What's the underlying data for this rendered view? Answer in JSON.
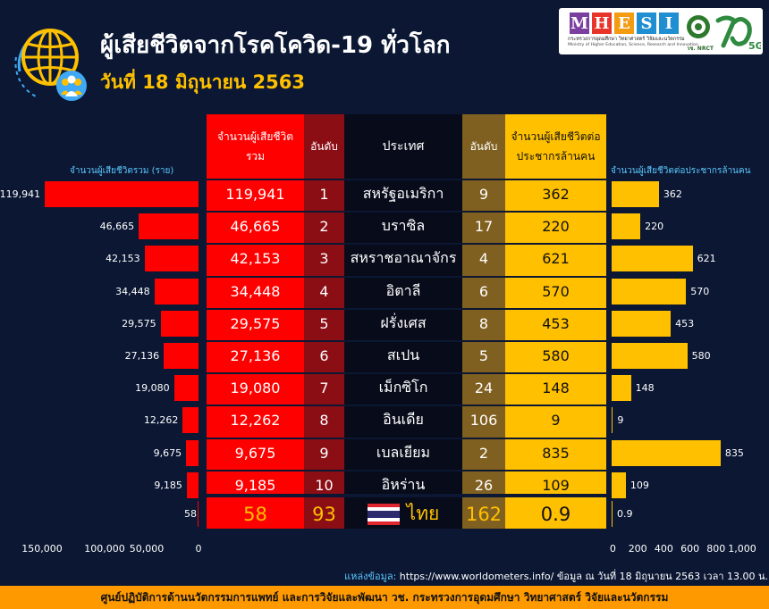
{
  "header": {
    "title": "ผู้เสียชีวิตจากโรคโควิด-19 ทั่วโลก",
    "date": "วันที่ 18 มิถุนายน 2563"
  },
  "logos": {
    "mhesi_letters": [
      "M",
      "H",
      "E",
      "S",
      "I"
    ],
    "mhesi_colors": [
      "#7b3fa0",
      "#e8352a",
      "#f39c12",
      "#1f8fd1",
      "#1f8fd1"
    ],
    "mhesi_th": "กระทรวงการอุดมศึกษา วิทยาศาสตร์ วิจัยและนวัตกรรม",
    "mhesi_en": "Ministry of Higher Education, Science, Research and Innovation",
    "nrct": "วช. NRCT",
    "fiveg": "5G"
  },
  "chart_data": [
    {
      "type": "bar",
      "orientation": "horizontal",
      "title": "จำนวนผู้เสียชีวิตรวม (ราย)",
      "categories": [
        "สหรัฐอเมริกา",
        "บราซิล",
        "สหราชอาณาจักร",
        "อิตาลี",
        "ฝรั่งเศส",
        "สเปน",
        "เม็กซิโก",
        "อินเดีย",
        "เบลเยียม",
        "อิหร่าน",
        "ไทย"
      ],
      "values": [
        119941,
        46665,
        42153,
        34448,
        29575,
        27136,
        19080,
        12262,
        9675,
        9185,
        58
      ],
      "value_labels": [
        "119,941",
        "46,665",
        "42,153",
        "34,448",
        "29,575",
        "27,136",
        "19,080",
        "12,262",
        "9,675",
        "9,185",
        "58"
      ],
      "xlim": [
        0,
        150000
      ],
      "ticks": [
        "150,000",
        "100,000",
        "50,000",
        "0"
      ],
      "direction": "right-to-left",
      "color": "#ff0000"
    },
    {
      "type": "bar",
      "orientation": "horizontal",
      "title": "จำนวนผู้เสียชีวิตต่อประชากรล้านคน",
      "categories": [
        "สหรัฐอเมริกา",
        "บราซิล",
        "สหราชอาณาจักร",
        "อิตาลี",
        "ฝรั่งเศส",
        "สเปน",
        "เม็กซิโก",
        "อินเดีย",
        "เบลเยียม",
        "อิหร่าน",
        "ไทย"
      ],
      "values": [
        362,
        220,
        621,
        570,
        453,
        580,
        148,
        9,
        835,
        109,
        0.9
      ],
      "value_labels": [
        "362",
        "220",
        "621",
        "570",
        "453",
        "580",
        "148",
        "9",
        "835",
        "109",
        "0.9"
      ],
      "xlim": [
        0,
        1000
      ],
      "ticks": [
        "0",
        "200",
        "400",
        "600",
        "800",
        "1,000"
      ],
      "color": "#ffc000"
    }
  ],
  "table": {
    "headers": {
      "total": "จำนวนผู้เสียชีวิต รวม",
      "rank": "อันดับ",
      "country": "ประเทศ",
      "rank_pm": "อันดับ",
      "per_million": "จำนวนผู้เสียชีวิตต่อ ประชากรล้านคน"
    },
    "rows": [
      {
        "total": "119,941",
        "rank": "1",
        "country": "สหรัฐอเมริกา",
        "rank_pm": "9",
        "per_million": "362"
      },
      {
        "total": "46,665",
        "rank": "2",
        "country": "บราซิล",
        "rank_pm": "17",
        "per_million": "220"
      },
      {
        "total": "42,153",
        "rank": "3",
        "country": "สหราชอาณาจักร",
        "rank_pm": "4",
        "per_million": "621"
      },
      {
        "total": "34,448",
        "rank": "4",
        "country": "อิตาลี",
        "rank_pm": "6",
        "per_million": "570"
      },
      {
        "total": "29,575",
        "rank": "5",
        "country": "ฝรั่งเศส",
        "rank_pm": "8",
        "per_million": "453"
      },
      {
        "total": "27,136",
        "rank": "6",
        "country": "สเปน",
        "rank_pm": "5",
        "per_million": "580"
      },
      {
        "total": "19,080",
        "rank": "7",
        "country": "เม็กซิโก",
        "rank_pm": "24",
        "per_million": "148"
      },
      {
        "total": "12,262",
        "rank": "8",
        "country": "อินเดีย",
        "rank_pm": "106",
        "per_million": "9"
      },
      {
        "total": "9,675",
        "rank": "9",
        "country": "เบลเยียม",
        "rank_pm": "2",
        "per_million": "835"
      },
      {
        "total": "9,185",
        "rank": "10",
        "country": "อิหร่าน",
        "rank_pm": "26",
        "per_million": "109"
      }
    ],
    "thailand": {
      "total": "58",
      "rank": "93",
      "country": "ไทย",
      "rank_pm": "162",
      "per_million": "0.9"
    }
  },
  "source": {
    "label": "แหล่งข้อมูล:",
    "text": " https://www.worldometers.info/ ข้อมูล ณ วันที่ 18 มิถุนายน 2563 เวลา 13.00 น."
  },
  "footer": "ศูนย์ปฏิบัติการด้านนวัตกรรมการแพทย์ และการวิจัยและพัฒนา วช. กระทรวงการอุดมศึกษา วิทยาศาสตร์ วิจัยและนวัตกรรม"
}
